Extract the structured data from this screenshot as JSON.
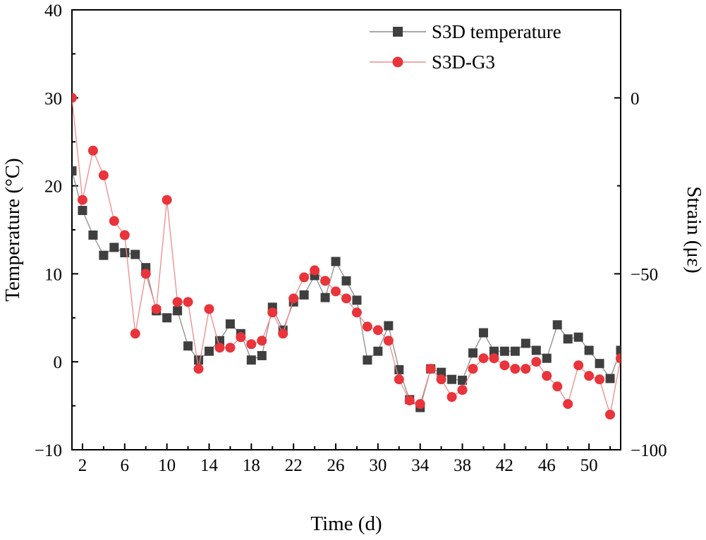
{
  "colors": {
    "temperature_line": "#8c8c8c",
    "temperature_marker": "#3f3f3f",
    "strain_line": "#f08a8a",
    "strain_marker": "#e8343a",
    "axis": "#000000"
  },
  "chart_data": {
    "type": "line",
    "xlabel": "Time (d)",
    "ylabel_left": "Temperature (°C)",
    "ylabel_right": "Strain (με)",
    "xlim": [
      1,
      53
    ],
    "ylim_left": [
      -10,
      40
    ],
    "ylim_right": [
      -100,
      25
    ],
    "x_ticks": [
      2,
      6,
      10,
      14,
      18,
      22,
      26,
      30,
      34,
      38,
      42,
      46,
      50
    ],
    "y_left_ticks": [
      -10,
      0,
      10,
      20,
      30,
      40
    ],
    "y_left_tick_labels": [
      "−10",
      "0",
      "10",
      "20",
      "30",
      "40"
    ],
    "y_right_ticks": [
      -100,
      -50,
      0
    ],
    "y_right_tick_labels": [
      "−100",
      "−50",
      "0"
    ],
    "legend_position": "top-right",
    "x": [
      1,
      2,
      3,
      4,
      5,
      6,
      7,
      8,
      9,
      10,
      11,
      12,
      13,
      14,
      15,
      16,
      17,
      18,
      19,
      20,
      21,
      22,
      23,
      24,
      25,
      26,
      27,
      28,
      29,
      30,
      31,
      32,
      33,
      34,
      35,
      36,
      37,
      38,
      39,
      40,
      41,
      42,
      43,
      44,
      45,
      46,
      47,
      48,
      49,
      50,
      51,
      52,
      53
    ],
    "series": [
      {
        "name": "S3D temperature",
        "axis": "left",
        "marker": "square",
        "values": [
          21.7,
          17.2,
          14.4,
          12.1,
          13.0,
          12.4,
          12.2,
          10.7,
          5.8,
          5.0,
          5.8,
          1.8,
          0.2,
          1.2,
          2.4,
          4.3,
          3.2,
          0.2,
          0.7,
          6.2,
          3.6,
          6.8,
          7.6,
          9.8,
          7.3,
          11.4,
          9.2,
          7.0,
          0.2,
          1.2,
          4.1,
          -0.9,
          -4.3,
          -5.2,
          -0.8,
          -1.2,
          -2.0,
          -2.1,
          1.0,
          3.3,
          1.2,
          1.2,
          1.2,
          2.1,
          1.3,
          0.4,
          4.2,
          2.6,
          2.8,
          1.3,
          -0.2,
          -1.9,
          1.3
        ]
      },
      {
        "name": "S3D-G3",
        "axis": "right",
        "marker": "circle",
        "values": [
          0,
          -29,
          -15,
          -22,
          -35,
          -39,
          -67,
          -50,
          -60,
          -29,
          -58,
          -58,
          -77,
          -60,
          -71,
          -71,
          -68,
          -70,
          -69,
          -61,
          -67,
          -57,
          -51,
          -49,
          -52,
          -55,
          -57,
          -61,
          -65,
          -66,
          -69,
          -80,
          -86,
          -87,
          -77,
          -80,
          -85,
          -83,
          -77,
          -74,
          -74,
          -76,
          -77,
          -77,
          -75,
          -79,
          -82,
          -87,
          -76,
          -79,
          -80,
          -90,
          -74
        ]
      }
    ]
  }
}
